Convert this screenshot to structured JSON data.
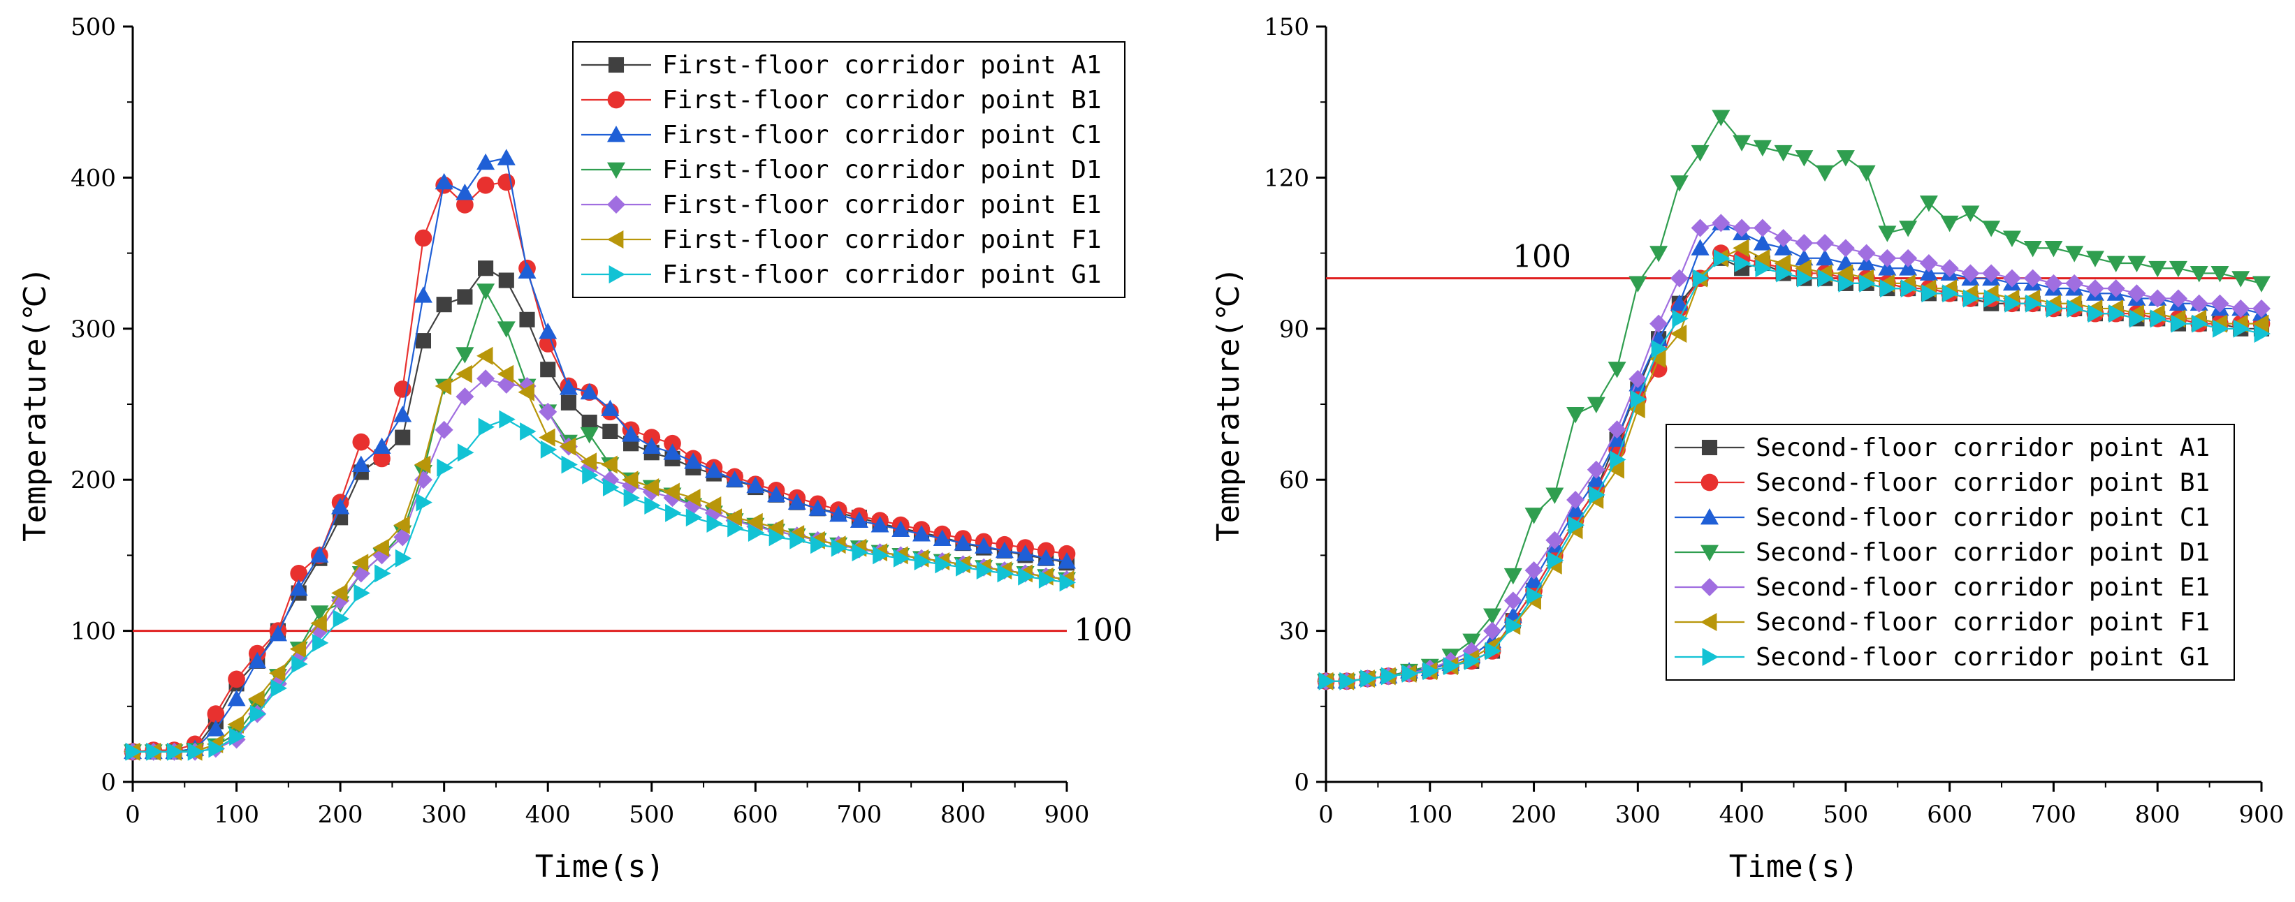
{
  "chart_data": [
    {
      "type": "line",
      "title": "",
      "xlabel": "Time(s)",
      "ylabel": "Temperature(℃)",
      "xlim": [
        0,
        900
      ],
      "ylim": [
        0,
        500
      ],
      "xticks": [
        0,
        100,
        200,
        300,
        400,
        500,
        600,
        700,
        800,
        900
      ],
      "yticks": [
        0,
        100,
        200,
        300,
        400,
        500
      ],
      "grid": false,
      "legend_position": "top-right",
      "reference_line": {
        "y": 100,
        "color": "#e02020",
        "label": "100"
      },
      "x": [
        0,
        20,
        40,
        60,
        80,
        100,
        120,
        140,
        160,
        180,
        200,
        220,
        240,
        260,
        280,
        300,
        320,
        340,
        360,
        380,
        400,
        420,
        440,
        460,
        480,
        500,
        520,
        540,
        560,
        580,
        600,
        620,
        640,
        660,
        680,
        700,
        720,
        740,
        760,
        780,
        800,
        820,
        840,
        860,
        880,
        900
      ],
      "series": [
        {
          "name": "First-floor corridor point A1",
          "marker": "square",
          "color": "#404040",
          "values": [
            20,
            20,
            20,
            22,
            40,
            65,
            80,
            100,
            125,
            148,
            175,
            205,
            215,
            228,
            292,
            316,
            321,
            340,
            332,
            306,
            273,
            251,
            238,
            232,
            224,
            218,
            214,
            208,
            204,
            200,
            195,
            190,
            185,
            181,
            178,
            175,
            171,
            168,
            165,
            162,
            158,
            155,
            153,
            150,
            148,
            145
          ]
        },
        {
          "name": "First-floor corridor point B1",
          "marker": "circle",
          "color": "#e8312f",
          "values": [
            20,
            21,
            21,
            25,
            45,
            68,
            85,
            100,
            138,
            150,
            185,
            225,
            214,
            260,
            360,
            395,
            382,
            395,
            397,
            340,
            290,
            262,
            258,
            245,
            233,
            228,
            224,
            214,
            208,
            202,
            197,
            193,
            188,
            184,
            180,
            176,
            173,
            170,
            167,
            164,
            161,
            159,
            157,
            155,
            153,
            151
          ]
        },
        {
          "name": "First-floor corridor point C1",
          "marker": "triangle-up",
          "color": "#1f5fd6",
          "values": [
            20,
            20,
            20,
            22,
            35,
            55,
            80,
            98,
            128,
            150,
            182,
            210,
            222,
            243,
            322,
            397,
            390,
            410,
            413,
            338,
            298,
            261,
            258,
            247,
            230,
            222,
            218,
            212,
            206,
            200,
            196,
            190,
            185,
            181,
            177,
            173,
            170,
            167,
            164,
            161,
            158,
            156,
            153,
            151,
            148,
            146
          ]
        },
        {
          "name": "First-floor corridor point D1",
          "marker": "triangle-down",
          "color": "#2f9e4f",
          "values": [
            20,
            20,
            20,
            21,
            24,
            32,
            50,
            70,
            88,
            112,
            118,
            138,
            150,
            165,
            205,
            262,
            283,
            325,
            300,
            262,
            245,
            225,
            230,
            210,
            200,
            195,
            190,
            183,
            178,
            173,
            170,
            166,
            163,
            160,
            157,
            155,
            152,
            150,
            148,
            146,
            144,
            142,
            140,
            138,
            136,
            134
          ]
        },
        {
          "name": "First-floor corridor point E1",
          "marker": "diamond",
          "color": "#a06ee0",
          "values": [
            20,
            20,
            20,
            20,
            22,
            28,
            45,
            65,
            82,
            100,
            120,
            138,
            150,
            162,
            200,
            233,
            255,
            267,
            263,
            262,
            245,
            222,
            208,
            200,
            196,
            192,
            188,
            183,
            178,
            173,
            169,
            166,
            163,
            160,
            157,
            154,
            152,
            150,
            148,
            146,
            144,
            142,
            140,
            138,
            136,
            134
          ]
        },
        {
          "name": "First-floor corridor point F1",
          "marker": "triangle-left",
          "color": "#b8960a",
          "values": [
            20,
            20,
            20,
            20,
            25,
            38,
            55,
            72,
            88,
            105,
            125,
            145,
            155,
            170,
            210,
            262,
            270,
            282,
            270,
            258,
            228,
            222,
            212,
            210,
            200,
            195,
            192,
            188,
            183,
            175,
            172,
            168,
            164,
            160,
            157,
            155,
            152,
            150,
            148,
            146,
            144,
            142,
            140,
            138,
            136,
            134
          ]
        },
        {
          "name": "First-floor corridor point G1",
          "marker": "triangle-right",
          "color": "#12c2d4",
          "values": [
            20,
            20,
            20,
            20,
            22,
            30,
            45,
            62,
            78,
            92,
            108,
            125,
            138,
            148,
            185,
            208,
            218,
            235,
            240,
            232,
            220,
            210,
            203,
            195,
            188,
            183,
            178,
            175,
            171,
            168,
            165,
            162,
            160,
            157,
            155,
            152,
            150,
            148,
            146,
            144,
            142,
            140,
            138,
            136,
            134,
            132
          ]
        }
      ]
    },
    {
      "type": "line",
      "title": "",
      "xlabel": "Time(s)",
      "ylabel": "Temperature(℃)",
      "xlim": [
        0,
        900
      ],
      "ylim": [
        0,
        150
      ],
      "xticks": [
        0,
        100,
        200,
        300,
        400,
        500,
        600,
        700,
        800,
        900
      ],
      "yticks": [
        0,
        30,
        60,
        90,
        120,
        150
      ],
      "grid": false,
      "legend_position": "bottom-right",
      "reference_line": {
        "y": 100,
        "color": "#e02020",
        "label": "100"
      },
      "x": [
        0,
        20,
        40,
        60,
        80,
        100,
        120,
        140,
        160,
        180,
        200,
        220,
        240,
        260,
        280,
        300,
        320,
        340,
        360,
        380,
        400,
        420,
        440,
        460,
        480,
        500,
        520,
        540,
        560,
        580,
        600,
        620,
        640,
        660,
        680,
        700,
        720,
        740,
        760,
        780,
        800,
        820,
        840,
        860,
        880,
        900
      ],
      "series": [
        {
          "name": "Second-floor corridor point A1",
          "marker": "square",
          "color": "#404040",
          "values": [
            20,
            20,
            20.5,
            21,
            21.5,
            22,
            23,
            24,
            26,
            32,
            38,
            45,
            52,
            58,
            68,
            78,
            88,
            95,
            100,
            104,
            102,
            103,
            101,
            100,
            100,
            99,
            99,
            98,
            98,
            97,
            97,
            96,
            95,
            95,
            95,
            94,
            94,
            93,
            93,
            92,
            92,
            91,
            91,
            91,
            90,
            90
          ]
        },
        {
          "name": "Second-floor corridor point B1",
          "marker": "circle",
          "color": "#e8312f",
          "values": [
            20,
            20,
            20.5,
            21,
            21.5,
            22,
            23,
            24,
            26,
            32,
            38,
            45,
            52,
            58,
            66,
            76,
            82,
            94,
            100,
            105,
            104,
            103,
            102,
            101,
            101,
            100,
            100,
            99,
            98,
            98,
            97,
            96,
            96,
            95,
            95,
            94,
            94,
            93,
            93,
            93,
            92,
            92,
            91,
            91,
            91,
            91
          ]
        },
        {
          "name": "Second-floor corridor point C1",
          "marker": "triangle-up",
          "color": "#1f5fd6",
          "values": [
            20,
            20,
            20.5,
            21,
            22,
            22.5,
            23.5,
            25,
            28,
            33,
            40,
            47,
            54,
            60,
            68,
            79,
            88,
            95,
            106,
            111,
            109,
            107,
            106,
            104,
            104,
            103,
            103,
            102,
            102,
            101,
            101,
            100,
            100,
            99,
            99,
            98,
            98,
            97,
            97,
            96,
            96,
            95,
            95,
            94,
            94,
            93
          ]
        },
        {
          "name": "Second-floor corridor point D1",
          "marker": "triangle-down",
          "color": "#2f9e4f",
          "values": [
            20,
            20,
            20.5,
            21,
            22,
            23,
            25,
            28,
            33,
            41,
            53,
            57,
            73,
            75,
            82,
            99,
            105,
            119,
            125,
            132,
            127,
            126,
            125,
            124,
            121,
            124,
            121,
            109,
            110,
            115,
            111,
            113,
            110,
            108,
            106,
            106,
            105,
            104,
            103,
            103,
            102,
            102,
            101,
            101,
            100,
            99
          ]
        },
        {
          "name": "Second-floor corridor point E1",
          "marker": "diamond",
          "color": "#a06ee0",
          "values": [
            20,
            20,
            20.5,
            21,
            21.5,
            22.5,
            24,
            26,
            30,
            36,
            42,
            48,
            56,
            62,
            70,
            80,
            91,
            100,
            110,
            111,
            110,
            110,
            108,
            107,
            107,
            106,
            105,
            104,
            104,
            103,
            102,
            101,
            101,
            100,
            100,
            99,
            99,
            98,
            98,
            97,
            96,
            96,
            95,
            95,
            94,
            94
          ]
        },
        {
          "name": "Second-floor corridor point F1",
          "marker": "triangle-left",
          "color": "#b8960a",
          "values": [
            20,
            20,
            20.5,
            21,
            21.5,
            22,
            23,
            24.5,
            27,
            31,
            36,
            43,
            50,
            56,
            62,
            74,
            84,
            89,
            100,
            104,
            106,
            104,
            103,
            102,
            101,
            101,
            100,
            99,
            99,
            98,
            98,
            97,
            97,
            96,
            96,
            95,
            95,
            94,
            94,
            93,
            93,
            92,
            92,
            91,
            91,
            91
          ]
        },
        {
          "name": "Second-floor corridor point G1",
          "marker": "triangle-right",
          "color": "#12c2d4",
          "values": [
            20,
            20,
            20.5,
            21,
            21.5,
            22,
            23,
            24,
            26,
            31,
            37,
            44,
            51,
            57,
            64,
            76,
            86,
            92,
            100,
            104,
            103,
            102,
            101,
            100,
            100,
            99,
            99,
            98,
            98,
            97,
            97,
            96,
            96,
            95,
            95,
            94,
            94,
            93,
            93,
            92,
            92,
            91,
            91,
            90,
            90,
            89
          ]
        }
      ]
    }
  ]
}
